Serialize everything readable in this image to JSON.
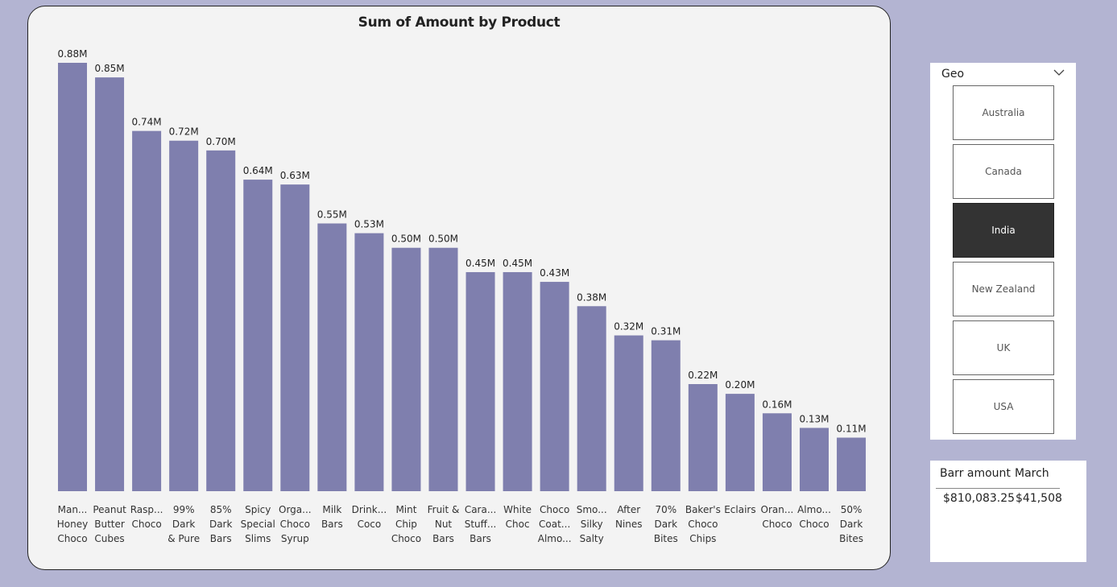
{
  "chart_data": {
    "type": "bar",
    "title": "Sum of Amount by Product",
    "xlabel": "",
    "ylabel": "",
    "ylim": [
      0,
      0.88
    ],
    "categories": [
      [
        "Man...",
        "Honey",
        "Choco"
      ],
      [
        "Peanut",
        "Butter",
        "Cubes"
      ],
      [
        "Rasp...",
        "Choco"
      ],
      [
        "99%",
        "Dark",
        "& Pure"
      ],
      [
        "85%",
        "Dark",
        "Bars"
      ],
      [
        "Spicy",
        "Special",
        "Slims"
      ],
      [
        "Orga...",
        "Choco",
        "Syrup"
      ],
      [
        "Milk",
        "Bars"
      ],
      [
        "Drink...",
        "Coco"
      ],
      [
        "Mint",
        "Chip",
        "Choco"
      ],
      [
        "Fruit &",
        "Nut",
        "Bars"
      ],
      [
        "Cara...",
        "Stuff...",
        "Bars"
      ],
      [
        "White",
        "Choc"
      ],
      [
        "Choco",
        "Coat...",
        "Almo..."
      ],
      [
        "Smo...",
        "Silky",
        "Salty"
      ],
      [
        "After",
        "Nines"
      ],
      [
        "70%",
        "Dark",
        "Bites"
      ],
      [
        "Baker's",
        "Choco",
        "Chips"
      ],
      [
        "Eclairs"
      ],
      [
        "Oran...",
        "Choco"
      ],
      [
        "Almo...",
        "Choco"
      ],
      [
        "50%",
        "Dark",
        "Bites"
      ]
    ],
    "values": [
      0.88,
      0.85,
      0.74,
      0.72,
      0.7,
      0.64,
      0.63,
      0.55,
      0.53,
      0.5,
      0.5,
      0.45,
      0.45,
      0.43,
      0.38,
      0.32,
      0.31,
      0.22,
      0.2,
      0.16,
      0.13,
      0.11
    ],
    "data_labels": [
      "0.88M",
      "0.85M",
      "0.74M",
      "0.72M",
      "0.70M",
      "0.64M",
      "0.63M",
      "0.55M",
      "0.53M",
      "0.50M",
      "0.50M",
      "0.45M",
      "0.45M",
      "0.43M",
      "0.38M",
      "0.32M",
      "0.31M",
      "0.22M",
      "0.20M",
      "0.16M",
      "0.13M",
      "0.11M"
    ],
    "bar_color": "#7f7fae",
    "grid": false,
    "legend": "none"
  },
  "slicer": {
    "title": "Geo",
    "options": [
      "Australia",
      "Canada",
      "India",
      "New Zealand",
      "UK",
      "USA"
    ],
    "selected": "India",
    "selected_color": "#333333"
  },
  "table": {
    "columns": [
      "Barr amount",
      "March"
    ],
    "row": [
      "$810,083.25",
      "$41,508"
    ]
  },
  "colors": {
    "page_background": "#b3b4d2",
    "card_background": "#f3f3f3"
  }
}
